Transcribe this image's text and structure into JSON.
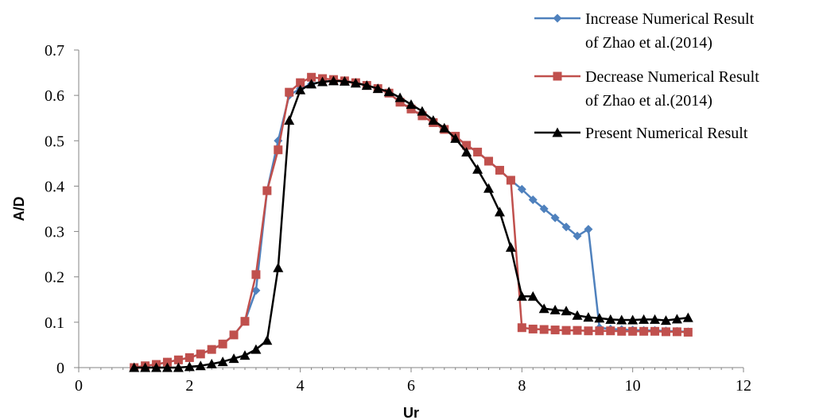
{
  "chart_data": {
    "type": "line",
    "xlabel": "Ur",
    "ylabel": "A/D",
    "xlim": [
      0,
      12
    ],
    "ylim": [
      0,
      0.7
    ],
    "x_ticks": [
      "0",
      "2",
      "4",
      "6",
      "8",
      "10",
      "12"
    ],
    "y_ticks": [
      "0",
      "0.1",
      "0.2",
      "0.3",
      "0.4",
      "0.5",
      "0.6",
      "0.7"
    ],
    "grid": false,
    "legend_position": "top-right",
    "series": [
      {
        "name": "Increase Numerical Result of Zhao et al.(2014)",
        "legend_lines": [
          "Increase Numerical Result",
          "of Zhao et al.(2014)"
        ],
        "color": "#4f81bd",
        "marker": "diamond",
        "points": [
          [
            1.0,
            0.0
          ],
          [
            1.2,
            0.004
          ],
          [
            1.4,
            0.007
          ],
          [
            1.6,
            0.012
          ],
          [
            1.8,
            0.017
          ],
          [
            2.0,
            0.022
          ],
          [
            2.2,
            0.03
          ],
          [
            2.4,
            0.04
          ],
          [
            2.6,
            0.052
          ],
          [
            2.8,
            0.072
          ],
          [
            3.0,
            0.102
          ],
          [
            3.2,
            0.17
          ],
          [
            3.4,
            0.39
          ],
          [
            3.6,
            0.5
          ],
          [
            3.8,
            0.6
          ],
          [
            4.0,
            0.615
          ],
          [
            4.2,
            0.625
          ],
          [
            4.4,
            0.63
          ],
          [
            4.6,
            0.632
          ],
          [
            4.8,
            0.632
          ],
          [
            5.0,
            0.628
          ],
          [
            5.2,
            0.622
          ],
          [
            5.4,
            0.615
          ],
          [
            5.6,
            0.605
          ],
          [
            5.8,
            0.585
          ],
          [
            6.0,
            0.57
          ],
          [
            6.2,
            0.555
          ],
          [
            6.4,
            0.54
          ],
          [
            6.6,
            0.525
          ],
          [
            6.8,
            0.51
          ],
          [
            7.0,
            0.49
          ],
          [
            7.2,
            0.475
          ],
          [
            7.4,
            0.455
          ],
          [
            7.6,
            0.435
          ],
          [
            7.8,
            0.413
          ],
          [
            8.0,
            0.393
          ],
          [
            8.2,
            0.37
          ],
          [
            8.4,
            0.35
          ],
          [
            8.6,
            0.33
          ],
          [
            8.8,
            0.31
          ],
          [
            9.0,
            0.29
          ],
          [
            9.2,
            0.305
          ],
          [
            9.4,
            0.088
          ],
          [
            9.6,
            0.085
          ],
          [
            9.8,
            0.084
          ],
          [
            10.0,
            0.083
          ],
          [
            10.2,
            0.082
          ],
          [
            10.4,
            0.082
          ],
          [
            10.6,
            0.081
          ],
          [
            10.8,
            0.08
          ],
          [
            11.0,
            0.079
          ]
        ]
      },
      {
        "name": "Decrease Numerical Result of Zhao et al.(2014)",
        "legend_lines": [
          "Decrease Numerical Result",
          "of Zhao et al.(2014)"
        ],
        "color": "#c0504d",
        "marker": "square",
        "points": [
          [
            1.0,
            0.0
          ],
          [
            1.2,
            0.004
          ],
          [
            1.4,
            0.007
          ],
          [
            1.6,
            0.012
          ],
          [
            1.8,
            0.017
          ],
          [
            2.0,
            0.022
          ],
          [
            2.2,
            0.03
          ],
          [
            2.4,
            0.04
          ],
          [
            2.6,
            0.052
          ],
          [
            2.8,
            0.072
          ],
          [
            3.0,
            0.102
          ],
          [
            3.2,
            0.205
          ],
          [
            3.4,
            0.39
          ],
          [
            3.6,
            0.48
          ],
          [
            3.8,
            0.607
          ],
          [
            4.0,
            0.628
          ],
          [
            4.2,
            0.64
          ],
          [
            4.4,
            0.637
          ],
          [
            4.6,
            0.635
          ],
          [
            4.8,
            0.632
          ],
          [
            5.0,
            0.628
          ],
          [
            5.2,
            0.622
          ],
          [
            5.4,
            0.615
          ],
          [
            5.6,
            0.605
          ],
          [
            5.8,
            0.585
          ],
          [
            6.0,
            0.57
          ],
          [
            6.2,
            0.555
          ],
          [
            6.4,
            0.54
          ],
          [
            6.6,
            0.525
          ],
          [
            6.8,
            0.51
          ],
          [
            7.0,
            0.49
          ],
          [
            7.2,
            0.475
          ],
          [
            7.4,
            0.455
          ],
          [
            7.6,
            0.435
          ],
          [
            7.8,
            0.413
          ],
          [
            8.0,
            0.088
          ],
          [
            8.2,
            0.085
          ],
          [
            8.4,
            0.084
          ],
          [
            8.6,
            0.083
          ],
          [
            8.8,
            0.082
          ],
          [
            9.0,
            0.082
          ],
          [
            9.2,
            0.081
          ],
          [
            9.4,
            0.081
          ],
          [
            9.6,
            0.081
          ],
          [
            9.8,
            0.08
          ],
          [
            10.0,
            0.08
          ],
          [
            10.2,
            0.08
          ],
          [
            10.4,
            0.08
          ],
          [
            10.6,
            0.079
          ],
          [
            10.8,
            0.079
          ],
          [
            11.0,
            0.078
          ]
        ]
      },
      {
        "name": "Present Numerical Result",
        "legend_lines": [
          "Present Numerical Result"
        ],
        "color": "#000000",
        "marker": "triangle",
        "points": [
          [
            1.0,
            0.0
          ],
          [
            1.2,
            0.0
          ],
          [
            1.4,
            0.0
          ],
          [
            1.6,
            0.0
          ],
          [
            1.8,
            0.0
          ],
          [
            2.0,
            0.002
          ],
          [
            2.2,
            0.004
          ],
          [
            2.4,
            0.008
          ],
          [
            2.6,
            0.013
          ],
          [
            2.8,
            0.02
          ],
          [
            3.0,
            0.027
          ],
          [
            3.2,
            0.04
          ],
          [
            3.4,
            0.06
          ],
          [
            3.6,
            0.22
          ],
          [
            3.8,
            0.545
          ],
          [
            4.0,
            0.612
          ],
          [
            4.2,
            0.625
          ],
          [
            4.4,
            0.63
          ],
          [
            4.6,
            0.632
          ],
          [
            4.8,
            0.631
          ],
          [
            5.0,
            0.627
          ],
          [
            5.2,
            0.622
          ],
          [
            5.4,
            0.615
          ],
          [
            5.6,
            0.608
          ],
          [
            5.8,
            0.595
          ],
          [
            6.0,
            0.58
          ],
          [
            6.2,
            0.565
          ],
          [
            6.4,
            0.545
          ],
          [
            6.6,
            0.528
          ],
          [
            6.8,
            0.505
          ],
          [
            7.0,
            0.475
          ],
          [
            7.2,
            0.437
          ],
          [
            7.4,
            0.395
          ],
          [
            7.6,
            0.343
          ],
          [
            7.8,
            0.265
          ],
          [
            8.0,
            0.157
          ],
          [
            8.2,
            0.157
          ],
          [
            8.4,
            0.13
          ],
          [
            8.6,
            0.127
          ],
          [
            8.8,
            0.125
          ],
          [
            9.0,
            0.115
          ],
          [
            9.2,
            0.111
          ],
          [
            9.4,
            0.109
          ],
          [
            9.6,
            0.106
          ],
          [
            9.8,
            0.105
          ],
          [
            10.0,
            0.105
          ],
          [
            10.2,
            0.106
          ],
          [
            10.4,
            0.106
          ],
          [
            10.6,
            0.104
          ],
          [
            10.8,
            0.107
          ],
          [
            11.0,
            0.11
          ]
        ]
      }
    ]
  }
}
